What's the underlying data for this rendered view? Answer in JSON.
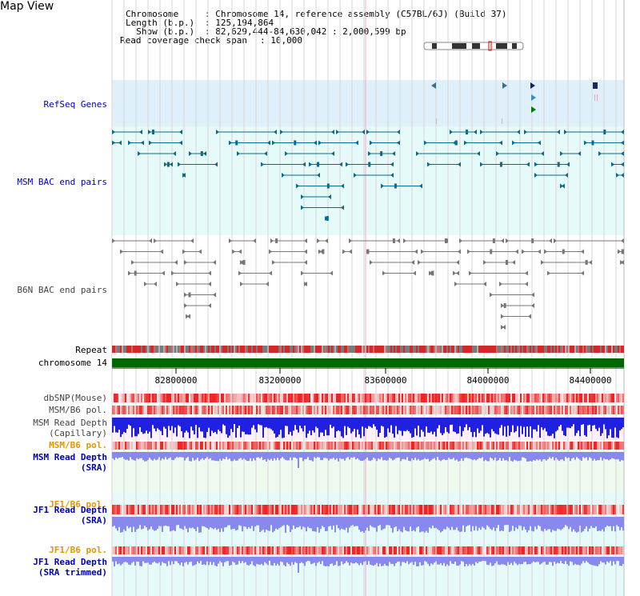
{
  "app": {
    "title": "Map View"
  },
  "header": {
    "chromosome_key": "Chromosome",
    "chromosome_value": ": Chromosome 14, reference assembly (C57BL/6J) (Build 37)",
    "length_key": "Length (b.p.)",
    "length_value": ": 125,194,864",
    "show_key": "  Show (b.p.)",
    "show_value": ": 82,629,444-84,630,042 : 2,000,599 bp",
    "span_key": "Read coverage check span",
    "span_value": ": 10,000"
  },
  "tracks": {
    "refseq": "RefSeq Genes",
    "msm_bac": "MSM BAC end pairs",
    "b6n_bac": "B6N BAC end pairs",
    "repeat": "Repeat",
    "chromosome": "chromosome 14",
    "dbsnp": "dbSNP(Mouse)",
    "msm_b6_pol_1": "MSM/B6 pol.",
    "msm_read_depth_cap": "MSM Read Depth\n(Capillary)",
    "msm_b6_pol_2": "MSM/B6 pol.",
    "msm_read_depth_sra": "MSM Read Depth\n(SRA)",
    "jf1_b6_pol_1": "JF1/B6 pol.",
    "jf1_read_depth_sra": "JF1 Read Depth\n(SRA)",
    "jf1_b6_pol_2": "JF1/B6 pol.",
    "jf1_read_depth_trimmed": "JF1 Read Depth\n(SRA trimmed)"
  },
  "axis": {
    "ticks": [
      "82800000",
      "83200000",
      "83600000",
      "84000000",
      "84400000"
    ]
  },
  "colors": {
    "refseq_bg": "#dff0fb",
    "msm_bg": "#e6fafa",
    "b6n_bg": "#ffffff",
    "msm_feature": "#0b6a8a",
    "b6n_feature": "#777777",
    "chromosome_bar": "#006600",
    "depth_blue": "#2020e0",
    "depth_light": "#8888ee",
    "snp_red": "#e03030"
  }
}
